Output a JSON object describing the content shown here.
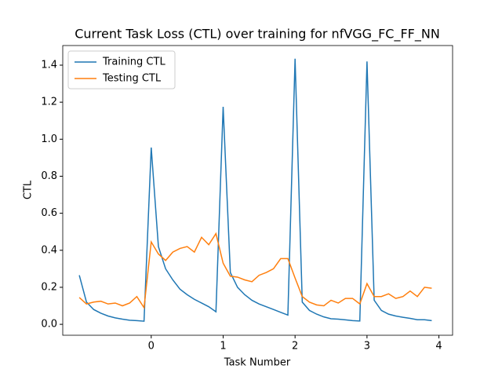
{
  "chart_data": {
    "type": "line",
    "title": "Current Task Loss (CTL) over training for nfVGG_FC_FF_NN",
    "x_label": "Task Number",
    "y_label": "CTL",
    "x": [
      -1.0,
      -0.9,
      -0.8,
      -0.7,
      -0.6,
      -0.5,
      -0.4,
      -0.3,
      -0.2,
      -0.1,
      0.0,
      0.1,
      0.2,
      0.3,
      0.4,
      0.5,
      0.6,
      0.7,
      0.8,
      0.9,
      1.0,
      1.1,
      1.2,
      1.3,
      1.4,
      1.5,
      1.6,
      1.7,
      1.8,
      1.9,
      2.0,
      2.1,
      2.2,
      2.3,
      2.4,
      2.5,
      2.6,
      2.7,
      2.8,
      2.9,
      3.0,
      3.1,
      3.2,
      3.3,
      3.4,
      3.5,
      3.6,
      3.7,
      3.8,
      3.9
    ],
    "series": [
      {
        "name": "Training CTL",
        "color": "#1f77b4",
        "values": [
          0.265,
          0.12,
          0.08,
          0.06,
          0.045,
          0.035,
          0.028,
          0.022,
          0.02,
          0.017,
          0.955,
          0.42,
          0.3,
          0.24,
          0.19,
          0.16,
          0.135,
          0.115,
          0.095,
          0.068,
          1.175,
          0.28,
          0.2,
          0.16,
          0.13,
          0.11,
          0.095,
          0.08,
          0.065,
          0.05,
          1.435,
          0.12,
          0.075,
          0.055,
          0.04,
          0.03,
          0.028,
          0.024,
          0.02,
          0.018,
          1.42,
          0.13,
          0.075,
          0.055,
          0.045,
          0.038,
          0.032,
          0.025,
          0.025,
          0.02
        ]
      },
      {
        "name": "Testing CTL",
        "color": "#ff7f0e",
        "values": [
          0.145,
          0.11,
          0.12,
          0.125,
          0.11,
          0.115,
          0.1,
          0.115,
          0.15,
          0.09,
          0.445,
          0.38,
          0.345,
          0.39,
          0.41,
          0.42,
          0.39,
          0.47,
          0.43,
          0.49,
          0.33,
          0.26,
          0.255,
          0.24,
          0.23,
          0.265,
          0.28,
          0.3,
          0.355,
          0.355,
          0.25,
          0.15,
          0.12,
          0.105,
          0.1,
          0.13,
          0.115,
          0.14,
          0.14,
          0.11,
          0.22,
          0.15,
          0.15,
          0.165,
          0.14,
          0.15,
          0.18,
          0.15,
          0.2,
          0.195
        ]
      }
    ],
    "xlim": [
      -1.23,
      4.19
    ],
    "ylim": [
      -0.059,
      1.506
    ],
    "xticks": [
      0,
      1,
      2,
      3,
      4
    ],
    "yticks": [
      {
        "value": 0,
        "label": "0.0"
      },
      0.2,
      0.4,
      0.6,
      0.8,
      {
        "value": 1,
        "label": "1.0"
      },
      1.2,
      1.4
    ],
    "grid": false,
    "legend": "upper-left"
  }
}
